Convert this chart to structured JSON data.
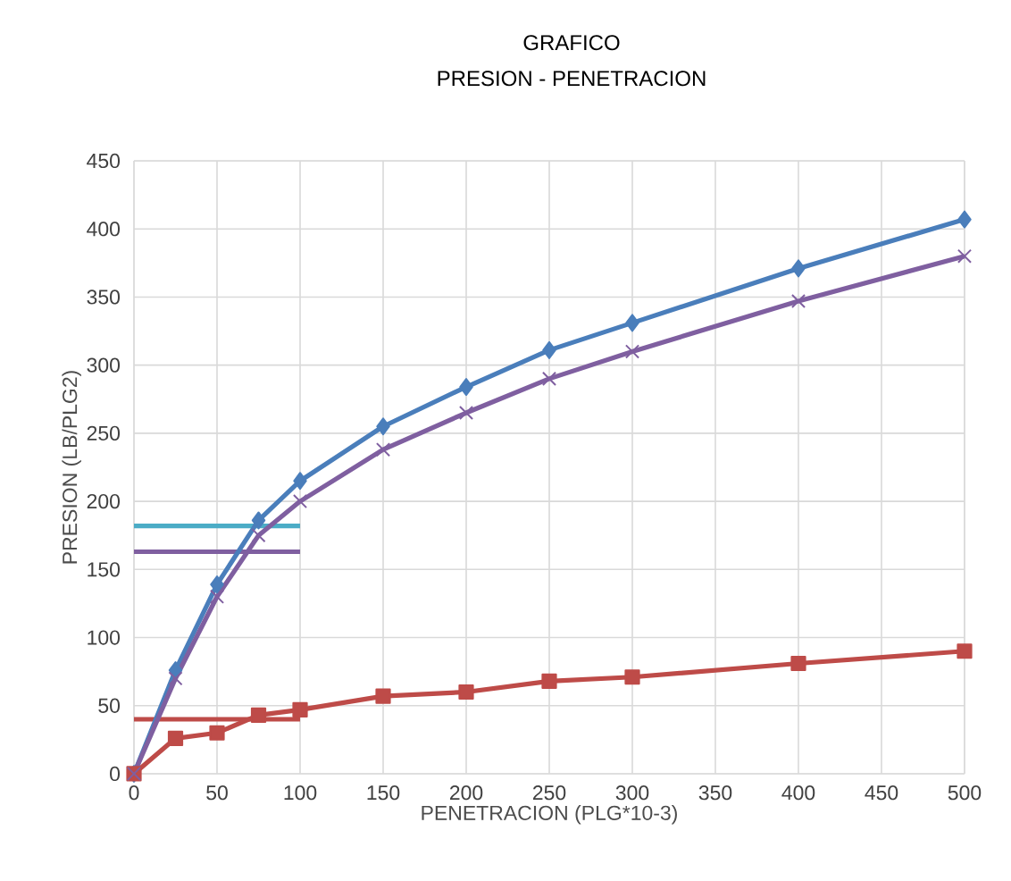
{
  "chart_data": {
    "type": "line",
    "title": "GRAFICO",
    "subtitle": "PRESION  - PENETRACION",
    "xlabel": "PENETRACION (PLG*10-3)",
    "ylabel": "PRESION (LB/PLG2)",
    "x": [
      0,
      25,
      50,
      75,
      100,
      150,
      200,
      250,
      300,
      400,
      500
    ],
    "series": [
      {
        "color": "#4bacc6",
        "marker": "none",
        "values": [
          182,
          182,
          182,
          182,
          182,
          null,
          null,
          null,
          null,
          null,
          null
        ]
      },
      {
        "color": "#7f5fa0",
        "marker": "none",
        "values": [
          163,
          163,
          163,
          163,
          163,
          null,
          null,
          null,
          null,
          null,
          null
        ]
      },
      {
        "color": "#be4b48",
        "marker": "none",
        "values": [
          40,
          40,
          40,
          40,
          40,
          null,
          null,
          null,
          null,
          null,
          null
        ]
      },
      {
        "color": "#4a7ebb",
        "marker": "diamond",
        "values": [
          0,
          76,
          139,
          186,
          215,
          255,
          284,
          311,
          331,
          371,
          407
        ]
      },
      {
        "color": "#be4b48",
        "marker": "square",
        "values": [
          0,
          26,
          30,
          43,
          47,
          57,
          60,
          68,
          71,
          81,
          90
        ]
      },
      {
        "color": "#7f5fa0",
        "marker": "cross",
        "values": [
          0,
          70,
          130,
          175,
          200,
          238,
          265,
          290,
          310,
          347,
          380
        ]
      }
    ],
    "xlim": [
      0,
      500
    ],
    "ylim": [
      0,
      450
    ],
    "xticks": [
      0,
      50,
      100,
      150,
      200,
      250,
      300,
      350,
      400,
      450,
      500
    ],
    "yticks": [
      0,
      50,
      100,
      150,
      200,
      250,
      300,
      350,
      400,
      450
    ],
    "grid": true,
    "line_style": "solid"
  }
}
